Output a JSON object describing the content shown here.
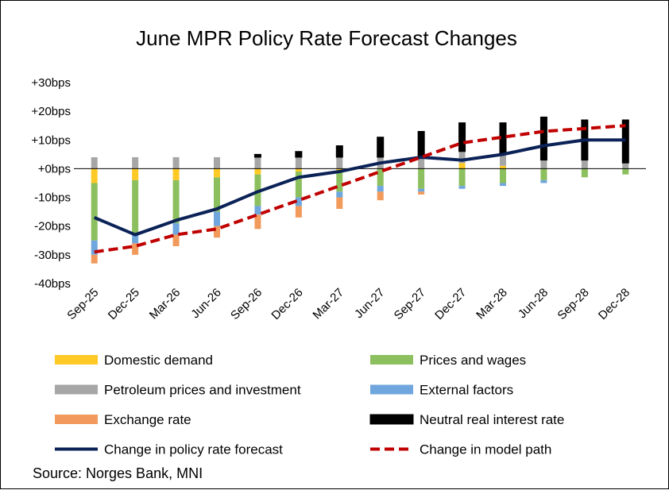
{
  "chart_data": {
    "type": "bar",
    "stacked": true,
    "title": "June MPR Policy Rate Forecast Changes",
    "source": "Source: Norges Bank, MNI",
    "categories": [
      "Sep-25",
      "Dec-25",
      "Mar-26",
      "Jun-26",
      "Sep-26",
      "Dec-26",
      "Mar-27",
      "Jun-27",
      "Sep-27",
      "Dec-27",
      "Mar-28",
      "Jun-28",
      "Sep-28",
      "Dec-28"
    ],
    "ylim": [
      -40,
      30
    ],
    "yticks": [
      {
        "value": 30,
        "label": "+30bps"
      },
      {
        "value": 20,
        "label": "+20bps"
      },
      {
        "value": 10,
        "label": "+10bps"
      },
      {
        "value": 0,
        "label": "+0bps"
      },
      {
        "value": -10,
        "label": "-10bps"
      },
      {
        "value": -20,
        "label": "-20bps"
      },
      {
        "value": -30,
        "label": "-30bps"
      },
      {
        "value": -40,
        "label": "-40bps"
      }
    ],
    "series": [
      {
        "name": "Domestic demand",
        "color": "#FFC926",
        "values": [
          -5,
          -4,
          -4,
          -3,
          -2,
          -1,
          -1,
          0,
          0,
          2,
          1,
          0,
          0,
          0
        ]
      },
      {
        "name": "Prices and wages",
        "color": "#8CBF5E",
        "values": [
          -20,
          -19,
          -15,
          -12,
          -11,
          -9,
          -7,
          -6,
          -7,
          -6,
          -5,
          -4,
          -3,
          -2
        ]
      },
      {
        "name": "Petroleum prices and investment",
        "color": "#A6A6A6",
        "values": [
          4,
          4,
          4,
          4,
          4,
          4,
          4,
          4,
          4,
          4,
          4,
          3,
          3,
          2
        ]
      },
      {
        "name": "External factors",
        "color": "#6FA6DE",
        "values": [
          -5,
          -3,
          -4,
          -5,
          -3,
          -3,
          -2,
          -2,
          -1,
          -1,
          -1,
          -1,
          0,
          0
        ]
      },
      {
        "name": "Exchange rate",
        "color": "#F19A5C",
        "values": [
          -3,
          -4,
          -4,
          -4,
          -5,
          -4,
          -4,
          -3,
          -1,
          0,
          0,
          0,
          0,
          0
        ]
      },
      {
        "name": "Neutral real interest rate",
        "color": "#000000",
        "values": [
          0,
          0,
          0,
          0,
          1,
          2,
          4,
          7,
          9,
          10,
          11,
          15,
          14,
          15
        ]
      }
    ],
    "lines": [
      {
        "name": "Change in policy rate forecast",
        "color": "#0B2257",
        "style": "solid",
        "values": [
          -17,
          -23,
          -18,
          -14,
          -8,
          -3,
          -1,
          2,
          4,
          3,
          5,
          8,
          10,
          10
        ]
      },
      {
        "name": "Change in model path",
        "color": "#C00000",
        "style": "dashed",
        "values": [
          -29,
          -27,
          -23,
          -21,
          -16,
          -11,
          -6,
          -1,
          4,
          9,
          11,
          13,
          14,
          15
        ]
      }
    ],
    "legend": {
      "placement": "bottom",
      "columns": 2
    }
  }
}
